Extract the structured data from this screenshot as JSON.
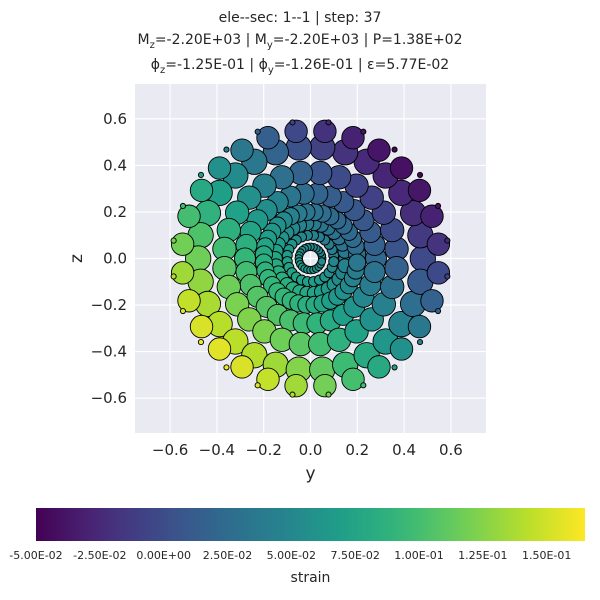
{
  "title": {
    "line1": "ele--sec: 1--1 | step: 37",
    "line2": "Mz=-2.20E+03 | My=-2.20E+03 | P=1.38E+02",
    "line3": "ϕz=-1.25E-01 | ϕy=-1.26E-01 | ε=5.77E-02"
  },
  "chart_data": {
    "type": "scatter",
    "title": "ele--sec: 1--1 | step: 37",
    "xlabel": "y",
    "ylabel": "z",
    "xlim": [
      -0.75,
      0.75
    ],
    "ylim": [
      -0.75,
      0.75
    ],
    "xticks": [
      "−0.6",
      "−0.4",
      "−0.2",
      "0.0",
      "0.2",
      "0.4",
      "0.6"
    ],
    "yticks": [
      "−0.6",
      "−0.4",
      "−0.2",
      "0.0",
      "0.2",
      "0.4",
      "0.6"
    ],
    "grid": true,
    "section_response": {
      "eps0": 0.0577,
      "phi_z": -0.125,
      "phi_y": -0.126
    },
    "rings": [
      {
        "radius": 0.05,
        "count": 24,
        "area": 0.5
      },
      {
        "radius": 0.1,
        "count": 24,
        "area": 1.0
      },
      {
        "radius": 0.15,
        "count": 30,
        "area": 1.8
      },
      {
        "radius": 0.2,
        "count": 36,
        "area": 2.5
      },
      {
        "radius": 0.28,
        "count": 30,
        "area": 3.3
      },
      {
        "radius": 0.37,
        "count": 28,
        "area": 3.8
      },
      {
        "radius": 0.48,
        "count": 30,
        "area": 4.2
      },
      {
        "radius": 0.55,
        "count": 28,
        "area": 3.6
      }
    ],
    "rebar": {
      "radius": 0.59,
      "count": 24
    },
    "colorbar": {
      "label": "strain",
      "min": -0.05,
      "max": 0.165,
      "colormap": "viridis",
      "tick_values": [
        -0.05,
        -0.025,
        0.0,
        0.025,
        0.05,
        0.075,
        0.1,
        0.125,
        0.15
      ],
      "tick_labels": [
        "-5.00E-02",
        "-2.50E-02",
        "0.00E+00",
        "2.50E-02",
        "5.00E-02",
        "7.50E-02",
        "1.00E-01",
        "1.25E-01",
        "1.50E-01"
      ]
    }
  },
  "colors": {
    "plot_bg": "#eaeaf2",
    "grid": "#ffffff",
    "text": "#262626",
    "marker_edge": "#000000"
  }
}
